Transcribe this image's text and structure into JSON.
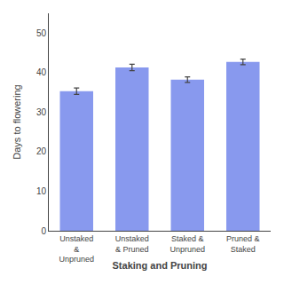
{
  "chart_data": {
    "type": "bar",
    "categories": [
      "Unstaked\n&\nUnpruned",
      "Unstaked\n& Pruned",
      "Staked &\nUnpruned",
      "Pruned &\nStaked"
    ],
    "values": [
      35.3,
      41.3,
      38.2,
      42.7
    ],
    "errors": [
      0.8,
      0.8,
      0.7,
      0.7
    ],
    "color": "#8899ee",
    "xlabel": "Staking and Pruning",
    "ylabel": "Days to flowering",
    "ylim": [
      0,
      55
    ],
    "yticks": [
      0,
      10,
      20,
      30,
      40,
      50
    ],
    "grid": false
  }
}
